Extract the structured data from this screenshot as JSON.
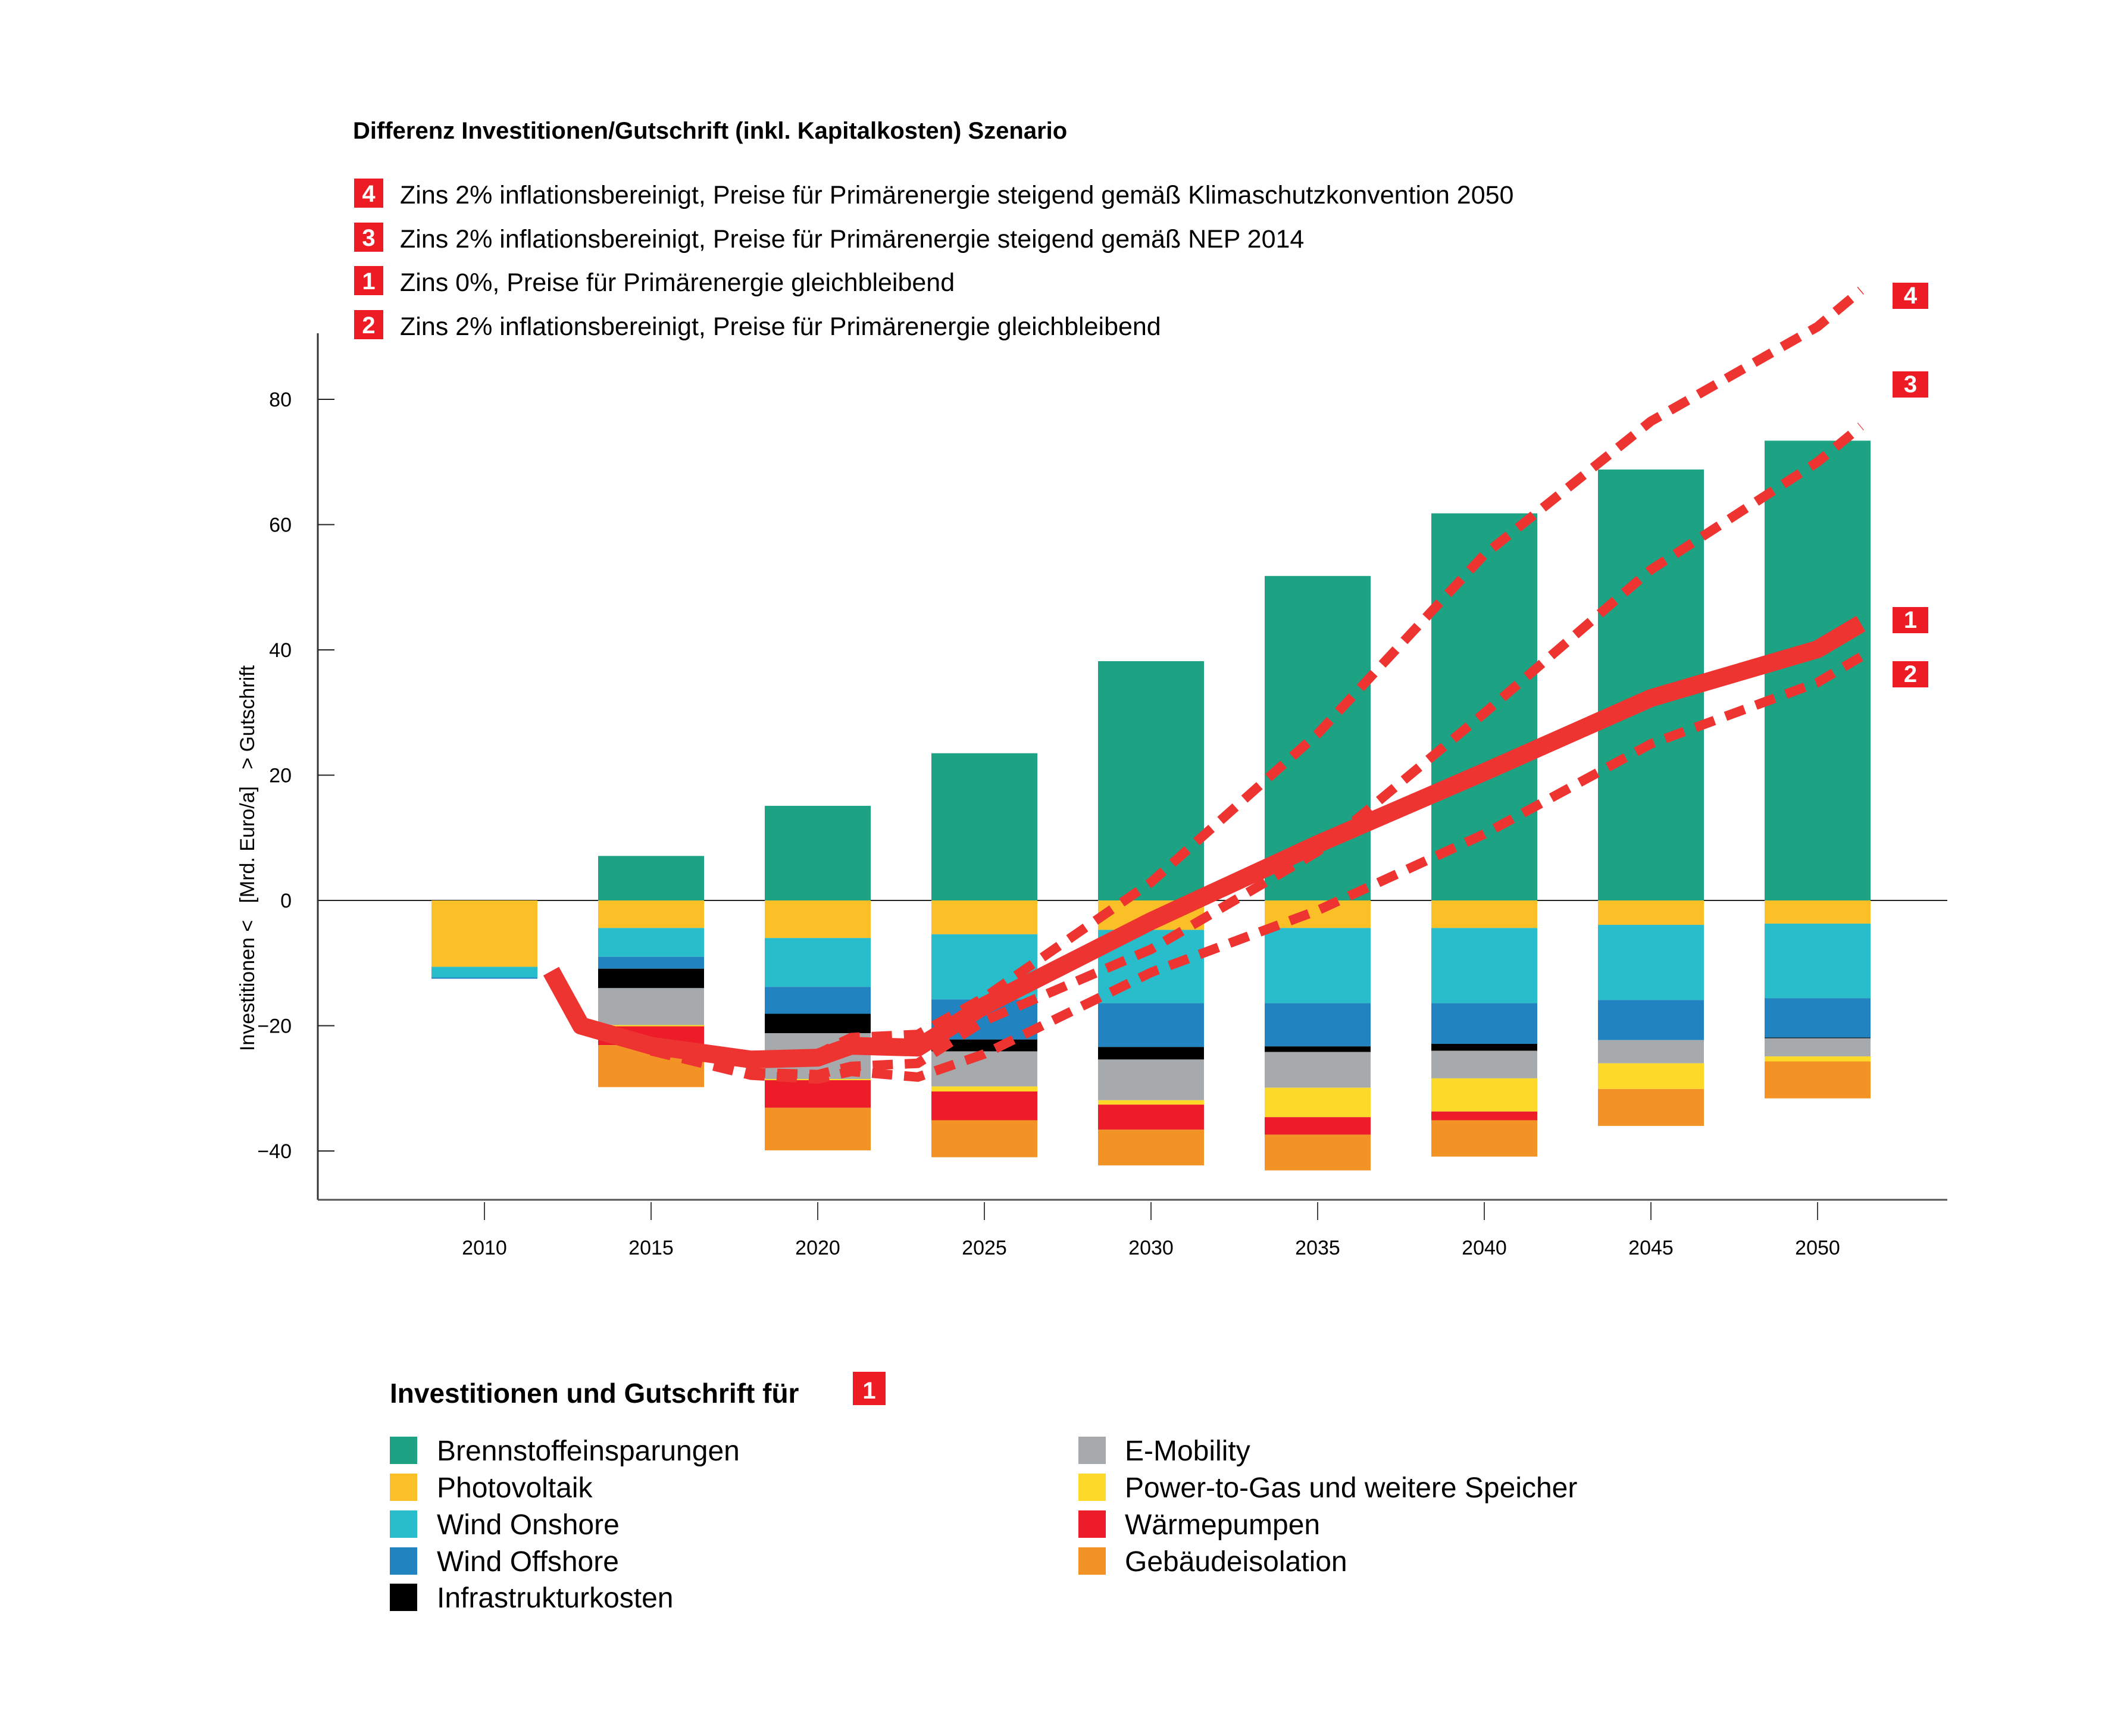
{
  "chart_data": {
    "type": "bar",
    "subtype": "stacked-bar-with-lines",
    "title": "Differenz Investitionen/Gutschrift (inkl. Kapitalkosten) Szenario",
    "xlabel": "",
    "ylabel": "Investitionen <   [Mrd. Euro/a]   > Gutschrift",
    "ylim": [
      -50,
      100
    ],
    "yticks": [
      80,
      60,
      40,
      20,
      0,
      -20,
      -40
    ],
    "ytick_labels": [
      "80",
      "60",
      "40",
      "20",
      "0",
      "−20",
      "−40"
    ],
    "categories": [
      "2010",
      "2015",
      "2020",
      "2025",
      "2030",
      "2035",
      "2040",
      "2045",
      "2050"
    ],
    "grid": false,
    "scenarios": [
      {
        "id": "4",
        "label": "Zins 2% inflationsbereinigt, Preise für Primärenergie steigend gemäß Klimaschutzkonvention 2050",
        "style": "dashed"
      },
      {
        "id": "3",
        "label": "Zins 2% inflationsbereinigt, Preise für Primärenergie steigend gemäß NEP 2014",
        "style": "dashed"
      },
      {
        "id": "1",
        "label": "Zins 0%, Preise für Primärenergie gleichbleibend",
        "style": "solid"
      },
      {
        "id": "2",
        "label": "Zins 2% inflationsbereinigt, Preise für Primärenergie gleichbleibend",
        "style": "dashed"
      }
    ],
    "series": [
      {
        "name": "Brennstoffeinsparungen",
        "color": "#1DA284",
        "values": [
          0,
          7.1,
          15.1,
          23.5,
          38.2,
          51.8,
          61.8,
          68.8,
          73.4
        ]
      },
      {
        "name": "Photovoltaik",
        "color": "#FBBF27",
        "values": [
          -10.6,
          -4.4,
          -6.0,
          -5.4,
          -4.7,
          -4.4,
          -4.4,
          -3.9,
          -3.7
        ]
      },
      {
        "name": "Wind Onshore",
        "color": "#29BCCB",
        "values": [
          -1.7,
          -4.6,
          -7.8,
          -10.4,
          -11.7,
          -12.0,
          -12.0,
          -12.0,
          -11.9
        ]
      },
      {
        "name": "Wind Offshore",
        "color": "#2184C0",
        "values": [
          -0.2,
          -1.9,
          -4.3,
          -6.4,
          -7.0,
          -6.9,
          -6.5,
          -6.4,
          -6.3
        ]
      },
      {
        "name": "Infrastrukturkosten",
        "color": "#000000",
        "values": [
          0,
          -3.1,
          -3.1,
          -1.9,
          -2.0,
          -0.9,
          -1.1,
          0,
          -0.1
        ]
      },
      {
        "name": "E-Mobility",
        "color": "#A6AAAC",
        "values": [
          0,
          -5.9,
          -7.3,
          -5.6,
          -6.5,
          -5.7,
          -4.4,
          -3.7,
          -2.9
        ]
      },
      {
        "name": "Power-to-Gas und weitere Speicher",
        "color": "#FDDA2A",
        "values": [
          0,
          -0.2,
          -0.2,
          -0.8,
          -0.7,
          -4.7,
          -5.3,
          -4.1,
          -0.8
        ]
      },
      {
        "name": "Wärmepumpen",
        "color": "#EC1C28",
        "values": [
          0,
          -3.0,
          -4.4,
          -4.6,
          -4.0,
          -2.8,
          -1.4,
          0,
          0
        ]
      },
      {
        "name": "Gebäudeisolation",
        "color": "#F39325",
        "values": [
          0,
          -6.7,
          -6.8,
          -5.9,
          -5.7,
          -5.7,
          -5.8,
          -5.9,
          -5.9
        ]
      }
    ],
    "lines": [
      {
        "scenario": "1",
        "style": "solid",
        "color": "#EE3431",
        "x": [
          2012.0,
          2012.9,
          2015.0,
          2018.0,
          2020.0,
          2021.0,
          2023.0,
          2025.0,
          2030.0,
          2035.0,
          2040.0,
          2045.0,
          2050.0,
          2051.3
        ],
        "y": [
          -11.3,
          -20.0,
          -23.2,
          -25.4,
          -25.1,
          -23.2,
          -23.5,
          -16.8,
          -3.3,
          9.0,
          20.5,
          32.3,
          40.1,
          44.2
        ]
      },
      {
        "scenario": "2",
        "style": "dashed",
        "color": "#EE3431",
        "x": [
          2015.0,
          2018.0,
          2020.0,
          2021.0,
          2023.0,
          2025.0,
          2030.0,
          2035.0,
          2040.0,
          2045.0,
          2050.0,
          2051.3
        ],
        "y": [
          -24.0,
          -27.9,
          -28.5,
          -27.3,
          -28.2,
          -24.5,
          -11.5,
          -1.6,
          10.6,
          25.0,
          34.8,
          38.9
        ]
      },
      {
        "scenario": "3",
        "style": "dashed",
        "color": "#EE3431",
        "x": [
          2015.0,
          2018.0,
          2020.0,
          2021.0,
          2023.0,
          2025.0,
          2030.0,
          2035.0,
          2040.0,
          2045.0,
          2050.0,
          2051.3
        ],
        "y": [
          -24.0,
          -27.5,
          -27.8,
          -26.5,
          -26.0,
          -19.2,
          -7.8,
          7.8,
          29.9,
          52.8,
          70.0,
          75.7
        ]
      },
      {
        "scenario": "4",
        "style": "dashed",
        "color": "#EE3431",
        "x": [
          2015.0,
          2018.0,
          2020.0,
          2021.0,
          2023.0,
          2025.0,
          2030.0,
          2035.0,
          2040.0,
          2045.0,
          2050.0,
          2051.3
        ],
        "y": [
          -23.5,
          -25.0,
          -24.5,
          -21.9,
          -21.4,
          -15.5,
          2.9,
          26.6,
          55.2,
          76.5,
          91.6,
          97.4
        ]
      }
    ],
    "legend": {
      "title": "Investitionen und Gutschrift für",
      "title_badge": "1",
      "placement": "bottom"
    }
  },
  "badge_color": "#ED1C24",
  "line_color": "#EE3431"
}
